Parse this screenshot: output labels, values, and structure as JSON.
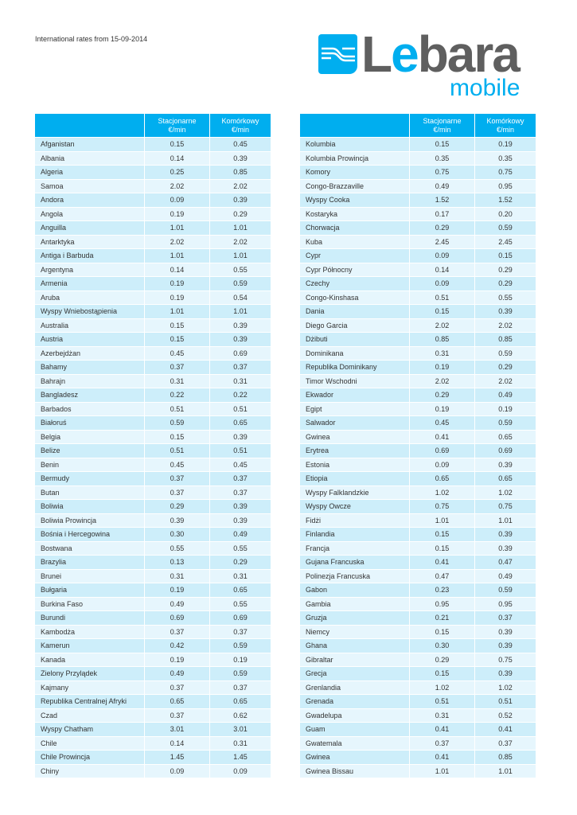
{
  "header": {
    "subtitle": "International rates from 15-09-2014"
  },
  "logo": {
    "brand": "Lebara",
    "tagline": "mobile"
  },
  "colors": {
    "accent": "#00aeef",
    "row_dark": "#cdeefa",
    "row_light": "#e6f6fd",
    "logo_grey": "#5f5f5f"
  },
  "columns": {
    "landline": "Stacjonarne",
    "mobile": "Komórkowy",
    "unit": "€/min"
  },
  "left_table": [
    [
      "Afganistan",
      "0.15",
      "0.45"
    ],
    [
      "Albania",
      "0.14",
      "0.39"
    ],
    [
      "Algeria",
      "0.25",
      "0.85"
    ],
    [
      "Samoa",
      "2.02",
      "2.02"
    ],
    [
      "Andora",
      "0.09",
      "0.39"
    ],
    [
      "Angola",
      "0.19",
      "0.29"
    ],
    [
      "Anguilla",
      "1.01",
      "1.01"
    ],
    [
      "Antarktyka",
      "2.02",
      "2.02"
    ],
    [
      "Antiga i Barbuda",
      "1.01",
      "1.01"
    ],
    [
      "Argentyna",
      "0.14",
      "0.55"
    ],
    [
      "Armenia",
      "0.19",
      "0.59"
    ],
    [
      "Aruba",
      "0.19",
      "0.54"
    ],
    [
      "Wyspy Wniebostąpienia",
      "1.01",
      "1.01"
    ],
    [
      "Australia",
      "0.15",
      "0.39"
    ],
    [
      "Austria",
      "0.15",
      "0.39"
    ],
    [
      "Azerbejdżan",
      "0.45",
      "0.69"
    ],
    [
      "Bahamy",
      "0.37",
      "0.37"
    ],
    [
      "Bahrajn",
      "0.31",
      "0.31"
    ],
    [
      "Bangladesz",
      "0.22",
      "0.22"
    ],
    [
      "Barbados",
      "0.51",
      "0.51"
    ],
    [
      "Białoruś",
      "0.59",
      "0.65"
    ],
    [
      "Belgia",
      "0.15",
      "0.39"
    ],
    [
      "Belize",
      "0.51",
      "0.51"
    ],
    [
      "Benin",
      "0.45",
      "0.45"
    ],
    [
      "Bermudy",
      "0.37",
      "0.37"
    ],
    [
      "Butan",
      "0.37",
      "0.37"
    ],
    [
      "Boliwia",
      "0.29",
      "0.39"
    ],
    [
      "Boliwia Prowincja",
      "0.39",
      "0.39"
    ],
    [
      "Bośnia i Hercegowina",
      "0.30",
      "0.49"
    ],
    [
      "Bostwana",
      "0.55",
      "0.55"
    ],
    [
      "Brazylia",
      "0.13",
      "0.29"
    ],
    [
      "Brunei",
      "0.31",
      "0.31"
    ],
    [
      "Bułgaria",
      "0.19",
      "0.65"
    ],
    [
      "Burkina Faso",
      "0.49",
      "0.55"
    ],
    [
      "Burundi",
      "0.69",
      "0.69"
    ],
    [
      "Kambodża",
      "0.37",
      "0.37"
    ],
    [
      "Kamerun",
      "0.42",
      "0.59"
    ],
    [
      "Kanada",
      "0.19",
      "0.19"
    ],
    [
      "Zielony Przylądek",
      "0.49",
      "0.59"
    ],
    [
      "Kajmany",
      "0.37",
      "0.37"
    ],
    [
      "Republika Centralnej Afryki",
      "0.65",
      "0.65"
    ],
    [
      "Czad",
      "0.37",
      "0.62"
    ],
    [
      "Wyspy Chatham",
      "3.01",
      "3.01"
    ],
    [
      "Chile",
      "0.14",
      "0.31"
    ],
    [
      "Chile Prowincja",
      "1.45",
      "1.45"
    ],
    [
      "Chiny",
      "0.09",
      "0.09"
    ]
  ],
  "right_table": [
    [
      "Kolumbia",
      "0.15",
      "0.19"
    ],
    [
      "Kolumbia Prowincja",
      "0.35",
      "0.35"
    ],
    [
      "Komory",
      "0.75",
      "0.75"
    ],
    [
      "Congo-Brazzaville",
      "0.49",
      "0.95"
    ],
    [
      "Wyspy Cooka",
      "1.52",
      "1.52"
    ],
    [
      "Kostaryka",
      "0.17",
      "0.20"
    ],
    [
      "Chorwacja",
      "0.29",
      "0.59"
    ],
    [
      "Kuba",
      "2.45",
      "2.45"
    ],
    [
      "Cypr",
      "0.09",
      "0.15"
    ],
    [
      "Cypr Północny",
      "0.14",
      "0.29"
    ],
    [
      "Czechy",
      "0.09",
      "0.29"
    ],
    [
      "Congo-Kinshasa",
      "0.51",
      "0.55"
    ],
    [
      "Dania",
      "0.15",
      "0.39"
    ],
    [
      "Diego Garcia",
      "2.02",
      "2.02"
    ],
    [
      "Dżibuti",
      "0.85",
      "0.85"
    ],
    [
      "Dominikana",
      "0.31",
      "0.59"
    ],
    [
      "Republika Dominikany",
      "0.19",
      "0.29"
    ],
    [
      "Timor Wschodni",
      "2.02",
      "2.02"
    ],
    [
      "Ekwador",
      "0.29",
      "0.49"
    ],
    [
      "Egipt",
      "0.19",
      "0.19"
    ],
    [
      "Salwador",
      "0.45",
      "0.59"
    ],
    [
      "Gwinea",
      "0.41",
      "0.65"
    ],
    [
      "Erytrea",
      "0.69",
      "0.69"
    ],
    [
      "Estonia",
      "0.09",
      "0.39"
    ],
    [
      "Etiopia",
      "0.65",
      "0.65"
    ],
    [
      "Wyspy Falklandzkie",
      "1.02",
      "1.02"
    ],
    [
      "Wyspy Owcze",
      "0.75",
      "0.75"
    ],
    [
      "Fidżi",
      "1.01",
      "1.01"
    ],
    [
      "Finlandia",
      "0.15",
      "0.39"
    ],
    [
      "Francja",
      "0.15",
      "0.39"
    ],
    [
      "Gujana Francuska",
      "0.41",
      "0.47"
    ],
    [
      "Polinezja Francuska",
      "0.47",
      "0.49"
    ],
    [
      "Gabon",
      "0.23",
      "0.59"
    ],
    [
      "Gambia",
      "0.95",
      "0.95"
    ],
    [
      "Gruzja",
      "0.21",
      "0.37"
    ],
    [
      "Niemcy",
      "0.15",
      "0.39"
    ],
    [
      "Ghana",
      "0.30",
      "0.39"
    ],
    [
      "Gibraltar",
      "0.29",
      "0.75"
    ],
    [
      "Grecja",
      "0.15",
      "0.39"
    ],
    [
      "Grenlandia",
      "1.02",
      "1.02"
    ],
    [
      "Grenada",
      "0.51",
      "0.51"
    ],
    [
      "Gwadelupa",
      "0.31",
      "0.52"
    ],
    [
      "Guam",
      "0.41",
      "0.41"
    ],
    [
      "Gwatemala",
      "0.37",
      "0.37"
    ],
    [
      "Gwinea",
      "0.41",
      "0.85"
    ],
    [
      "Gwinea Bissau",
      "1.01",
      "1.01"
    ]
  ]
}
